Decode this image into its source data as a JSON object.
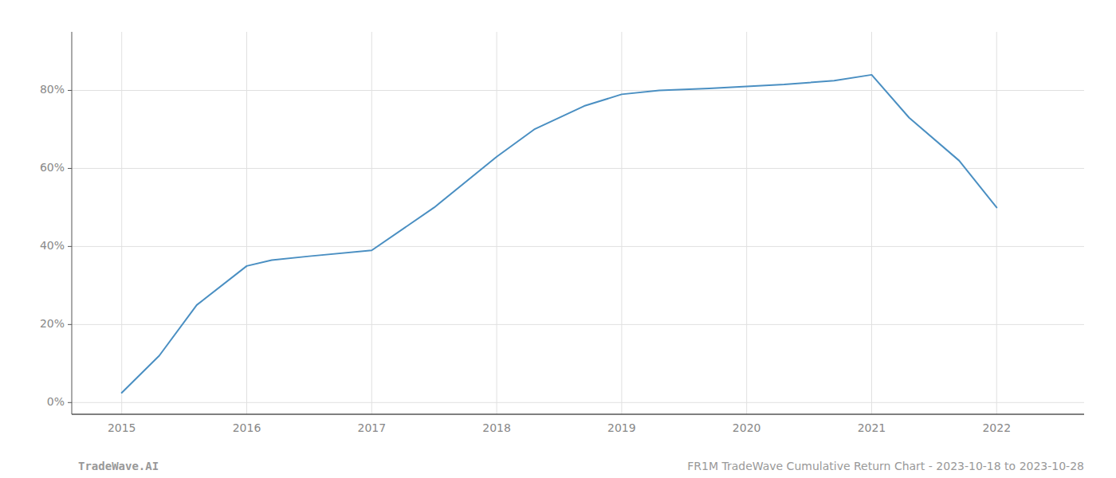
{
  "chart_data": {
    "type": "line",
    "x": [
      2015.0,
      2015.3,
      2015.6,
      2016.0,
      2016.2,
      2016.5,
      2017.0,
      2017.5,
      2018.0,
      2018.3,
      2018.7,
      2019.0,
      2019.3,
      2019.7,
      2020.0,
      2020.3,
      2020.7,
      2021.0,
      2021.3,
      2021.7,
      2022.0
    ],
    "values": [
      2.5,
      12.0,
      25.0,
      35.0,
      36.5,
      37.5,
      39.0,
      50.0,
      63.0,
      70.0,
      76.0,
      79.0,
      80.0,
      80.5,
      81.0,
      81.5,
      82.5,
      84.0,
      73.0,
      62.0,
      50.0
    ],
    "color": "#4a8fc2",
    "xlim": [
      2014.6,
      2022.7
    ],
    "ylim": [
      -3,
      95
    ],
    "xticks": [
      2015,
      2016,
      2017,
      2018,
      2019,
      2020,
      2021,
      2022
    ],
    "yticks": [
      {
        "value": 0,
        "label": "0%"
      },
      {
        "value": 20,
        "label": "20%"
      },
      {
        "value": 40,
        "label": "40%"
      },
      {
        "value": 60,
        "label": "60%"
      },
      {
        "value": 80,
        "label": "80%"
      }
    ],
    "grid": true,
    "annotations": [
      "TradeWave.AI",
      "FR1M TradeWave Cumulative Return Chart - 2023-10-18 to 2023-10-28"
    ]
  }
}
